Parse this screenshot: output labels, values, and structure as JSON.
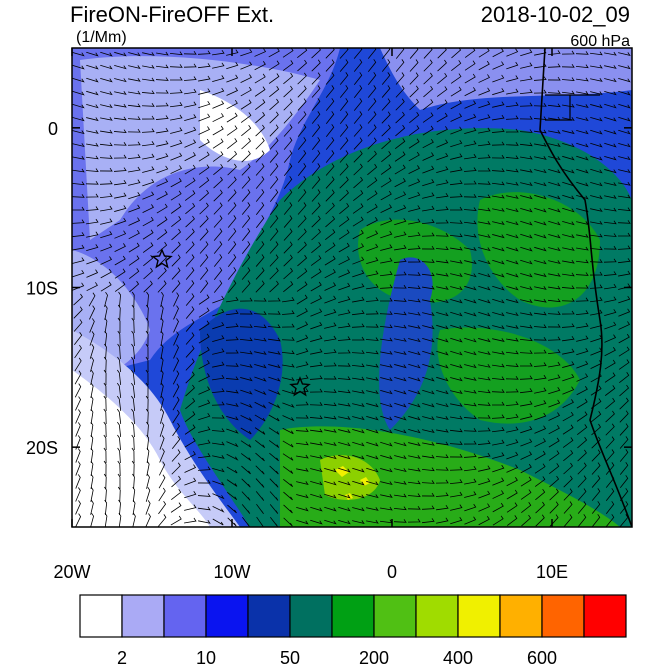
{
  "header": {
    "title": "FireON-FireOFF Ext.",
    "units": "(1/Mm)",
    "datetime": "2018-10-02_09",
    "level": "600 hPa"
  },
  "map": {
    "xlim": [
      -20,
      15
    ],
    "ylim": [
      -25,
      5
    ],
    "xticks": [
      {
        "value": -20,
        "label": "20W"
      },
      {
        "value": -10,
        "label": "10W"
      },
      0,
      {
        "value": 10,
        "label": "10E"
      }
    ],
    "yticks": [
      0,
      {
        "value": -10,
        "label": "10S"
      },
      {
        "value": -20,
        "label": "20S"
      }
    ]
  },
  "colorbar": {
    "colors": [
      "#ffffff",
      "#aaaaf5",
      "#6464f0",
      "#0a14f0",
      "#0a32aa",
      "#007060",
      "#00a014",
      "#50c014",
      "#a0dc00",
      "#f0f000",
      "#ffb000",
      "#ff6400",
      "#ff0000"
    ],
    "levels": [
      2,
      10,
      50,
      200,
      400,
      600
    ]
  }
}
